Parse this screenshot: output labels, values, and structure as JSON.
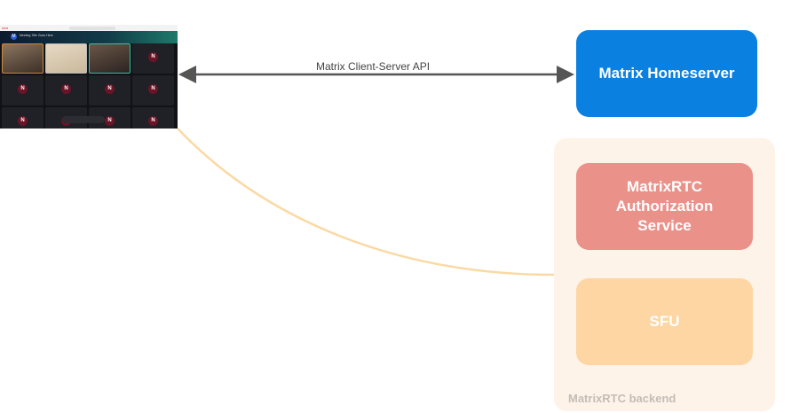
{
  "client": {
    "meeting_title": "Meeting Title Goes Here",
    "avatar_letter": "N",
    "logo_letter": "M"
  },
  "edges": {
    "client_server_api": "Matrix Client-Server API"
  },
  "nodes": {
    "homeserver": "Matrix Homeserver",
    "auth_service": "MatrixRTC Authorization Service",
    "sfu": "SFU",
    "backend_group": "MatrixRTC backend"
  },
  "colors": {
    "homeserver": "#0a80e1",
    "auth_service": "#ea918a",
    "sfu": "#fdd6a4",
    "backend_group": "#fef3e8",
    "arrow": "#555555",
    "sfu_link": "#fbd9a3"
  }
}
